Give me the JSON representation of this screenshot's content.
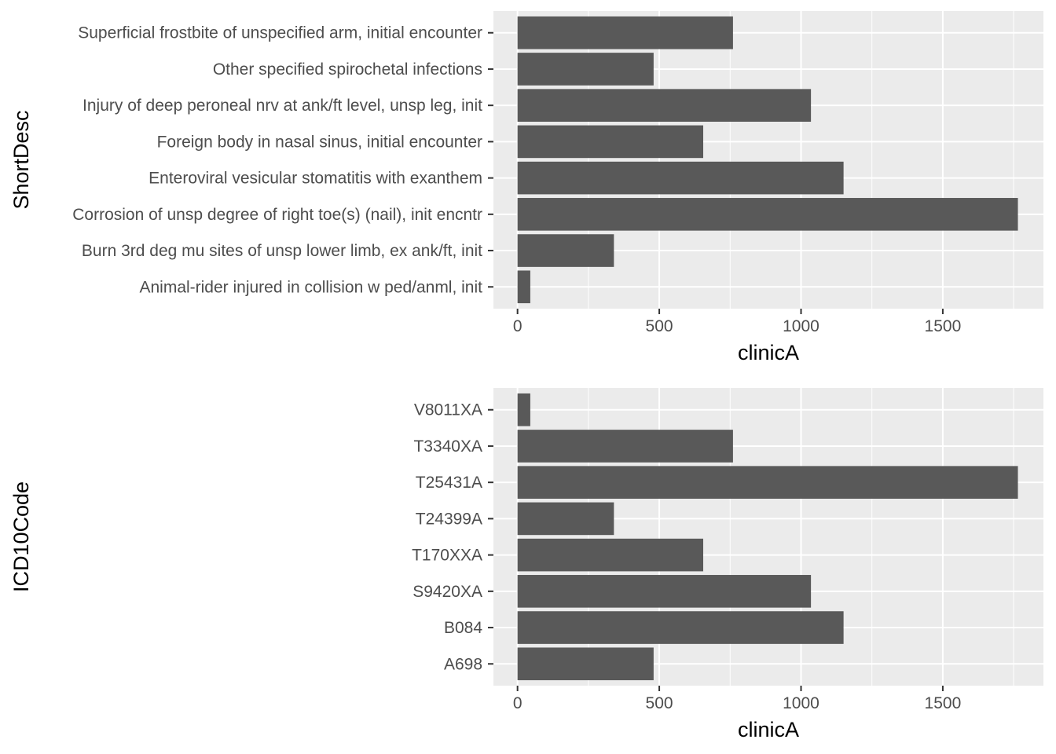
{
  "chart_data": [
    {
      "type": "bar",
      "orientation": "horizontal",
      "xlabel": "clinicA",
      "ylabel": "ShortDesc",
      "xlim": [
        -85,
        1855
      ],
      "x_ticks": [
        0,
        500,
        1000,
        1500
      ],
      "grid": true,
      "categories": [
        "Animal-rider injured in collision w ped/anml, init",
        "Burn 3rd deg mu sites of unsp lower limb, ex ank/ft, init",
        "Corrosion of unsp degree of right toe(s) (nail), init encntr",
        "Enteroviral vesicular stomatitis with exanthem",
        "Foreign body in nasal sinus, initial encounter",
        "Injury of deep peroneal nrv at ank/ft level, unsp leg, init",
        "Other specified spirochetal infections",
        "Superficial frostbite of unspecified arm, initial encounter"
      ],
      "values": [
        45,
        340,
        1765,
        1150,
        655,
        1035,
        480,
        760
      ]
    },
    {
      "type": "bar",
      "orientation": "horizontal",
      "xlabel": "clinicA",
      "ylabel": "ICD10Code",
      "xlim": [
        -85,
        1855
      ],
      "x_ticks": [
        0,
        500,
        1000,
        1500
      ],
      "grid": true,
      "categories": [
        "A698",
        "B084",
        "S9420XA",
        "T170XXA",
        "T24399A",
        "T25431A",
        "T3340XA",
        "V8011XA"
      ],
      "values": [
        480,
        1150,
        1035,
        655,
        340,
        1765,
        760,
        45
      ]
    }
  ]
}
